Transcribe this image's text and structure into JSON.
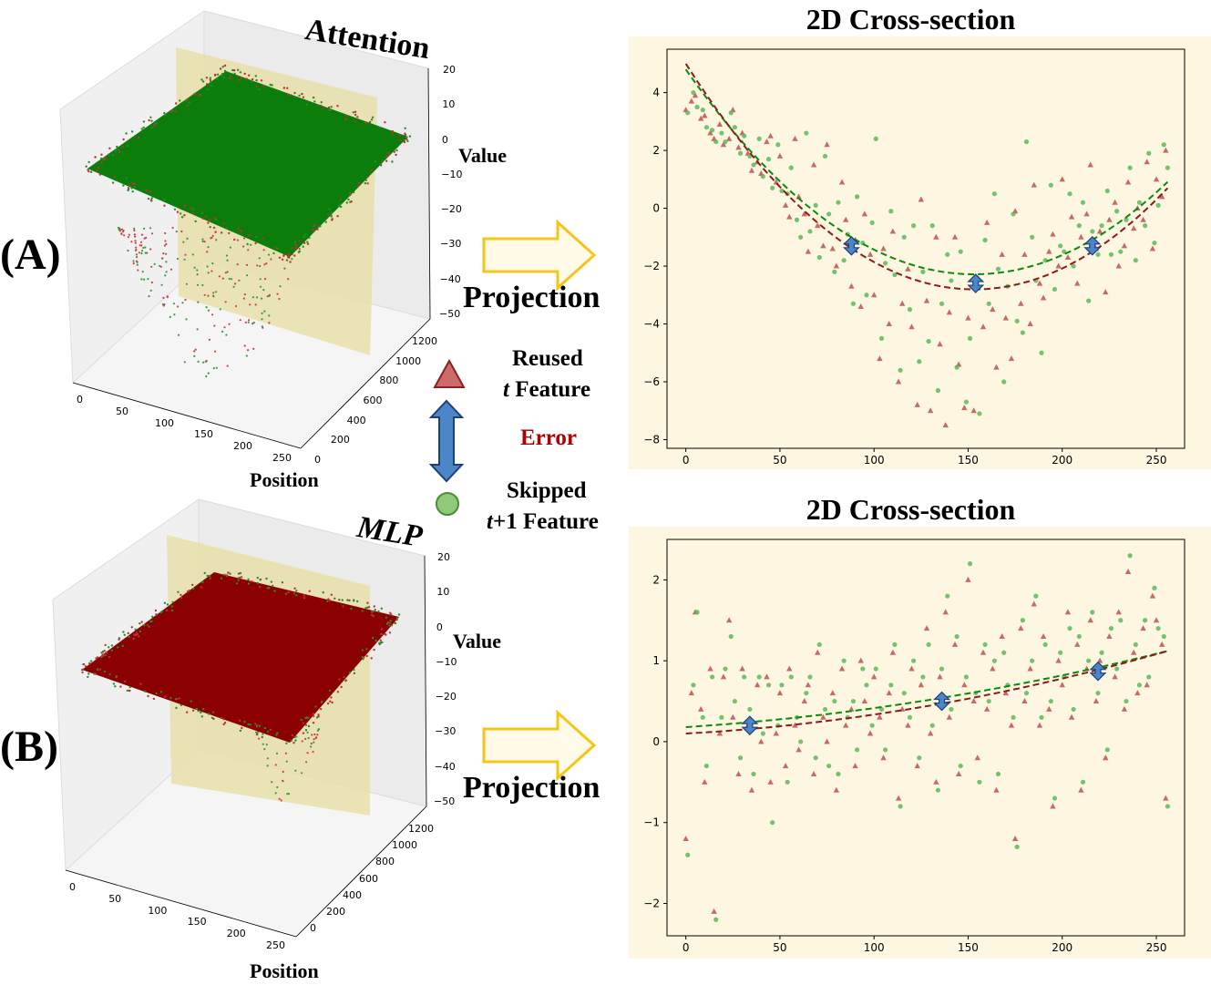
{
  "panels": [
    {
      "label": "(A)",
      "cube_title": "Attention",
      "cube_value_label": "Value",
      "cube_position_label": "Position",
      "cube_surface_color": "#0a7d0a",
      "cube_z_ticks": [
        "20",
        "10",
        "0",
        "−10",
        "−20",
        "−30",
        "−40",
        "−50"
      ],
      "cube_x_ticks": [
        "0",
        "50",
        "100",
        "150",
        "200",
        "250"
      ],
      "cube_y_ticks": [
        "0",
        "200",
        "400",
        "600",
        "800",
        "1000",
        "1200"
      ],
      "arrow_label": "Projection"
    },
    {
      "label": "(B)",
      "cube_title": "MLP",
      "cube_value_label": "Value",
      "cube_position_label": "Position",
      "cube_surface_color": "#8b0000",
      "cube_z_ticks": [
        "20",
        "10",
        "0",
        "−10",
        "−20",
        "−30",
        "−40",
        "−50"
      ],
      "cube_x_ticks": [
        "0",
        "50",
        "100",
        "150",
        "200",
        "250"
      ],
      "cube_y_ticks": [
        "0",
        "200",
        "400",
        "600",
        "800",
        "1000",
        "1200"
      ],
      "arrow_label": "Projection"
    }
  ],
  "legend": {
    "reused_line1": "Reused",
    "reused_line2_italic": "t",
    "reused_line2_rest": " Feature",
    "error": "Error",
    "skipped_line1": "Skipped",
    "skipped_line2_italic": "t",
    "skipped_line2_rest": "+1 Feature",
    "reused_color": "#cd6b6b",
    "skipped_color": "#8fc97a",
    "error_color": "#b00000",
    "arrow_color": "#4a86c8"
  },
  "colors": {
    "plot_bg": "#fdf6e0",
    "green_fit": "#0a8a0a",
    "red_fit": "#8b1a1a",
    "green_point": "#5cb85c",
    "red_point": "#c0504d",
    "projection_arrow_fill": "#fffbe8",
    "projection_arrow_stroke": "#f5c518"
  },
  "chart_data": [
    {
      "type": "scatter",
      "title": "2D Cross-section",
      "xlim": [
        -10,
        265
      ],
      "ylim": [
        -8.3,
        5.5
      ],
      "xticks": [
        0,
        50,
        100,
        150,
        200,
        250
      ],
      "yticks": [
        -8,
        -6,
        -4,
        -2,
        0,
        2,
        4
      ],
      "grid": false,
      "series": [
        {
          "kind": "fit",
          "color": "green",
          "coef": [
            4.8,
            -0.0925,
            0.000302
          ]
        },
        {
          "kind": "fit",
          "color": "red",
          "coef": [
            5.0,
            -0.1018,
            0.000332
          ]
        },
        {
          "kind": "error_markers",
          "x": [
            88,
            154,
            216
          ],
          "y": [
            -1.3,
            -2.6,
            -1.3
          ]
        },
        {
          "kind": "scatter",
          "color": "red",
          "marker": "triangle",
          "x": [
            0,
            3,
            5,
            8,
            10,
            13,
            15,
            18,
            20,
            23,
            25,
            28,
            30,
            33,
            35,
            38,
            40,
            43,
            45,
            48,
            50,
            53,
            55,
            58,
            60,
            63,
            65,
            68,
            70,
            73,
            75,
            78,
            80,
            83,
            85,
            88,
            90,
            93,
            95,
            98,
            100,
            103,
            105,
            108,
            110,
            113,
            115,
            118,
            120,
            123,
            125,
            128,
            130,
            133,
            135,
            138,
            140,
            143,
            145,
            148,
            150,
            153,
            155,
            158,
            160,
            163,
            165,
            168,
            170,
            173,
            175,
            178,
            180,
            183,
            185,
            188,
            190,
            193,
            195,
            198,
            200,
            203,
            205,
            208,
            210,
            213,
            215,
            218,
            220,
            223,
            225,
            228,
            230,
            233,
            235,
            238,
            240,
            243,
            245,
            248,
            250,
            253,
            255
          ],
          "y": [
            3.4,
            3.7,
            3.9,
            3.1,
            3.2,
            2.6,
            2.4,
            2.9,
            2.2,
            2.4,
            3.4,
            2.1,
            2.6,
            1.9,
            1.3,
            1.6,
            1.2,
            2.3,
            2.5,
            0.9,
            1.8,
            0.1,
            -0.3,
            2.4,
            0.4,
            -0.2,
            -1.5,
            1.5,
            -0.6,
            -1.3,
            2.2,
            -1.4,
            -2.0,
            0.9,
            -0.4,
            -2.7,
            -1.1,
            -3.4,
            -0.2,
            -1.6,
            -3.0,
            -5.2,
            -1.4,
            -4.0,
            -0.8,
            -6.0,
            -3.3,
            -2.1,
            -4.1,
            -6.8,
            0.3,
            -3.2,
            -7.0,
            -1.0,
            -4.7,
            -7.5,
            -3.6,
            -1.0,
            -5.4,
            -6.9,
            -3.8,
            -7.0,
            -2.7,
            -4.1,
            -0.5,
            -3.5,
            -5.5,
            -1.6,
            -3.8,
            -5.2,
            -0.1,
            -3.3,
            -1.6,
            -4.0,
            0.8,
            -2.6,
            -3.1,
            -1.5,
            -0.9,
            -2.0,
            1.0,
            -1.7,
            -0.3,
            -2.6,
            -1.0,
            -0.2,
            1.5,
            -1.4,
            -0.8,
            -2.9,
            -0.4,
            0.2,
            -2.0,
            -1.3,
            0.9,
            -0.7,
            0.0,
            -0.4,
            1.6,
            -1.4,
            1.0,
            0.4,
            2.0
          ]
        },
        {
          "kind": "scatter",
          "color": "green",
          "marker": "circle",
          "x": [
            1,
            4,
            6,
            9,
            11,
            14,
            16,
            19,
            21,
            24,
            26,
            29,
            31,
            34,
            36,
            39,
            41,
            44,
            46,
            49,
            51,
            54,
            56,
            59,
            61,
            64,
            66,
            69,
            71,
            74,
            76,
            79,
            81,
            84,
            86,
            89,
            91,
            94,
            96,
            99,
            101,
            104,
            106,
            109,
            111,
            114,
            116,
            119,
            121,
            124,
            126,
            129,
            131,
            134,
            136,
            139,
            141,
            144,
            146,
            149,
            151,
            154,
            156,
            159,
            161,
            164,
            166,
            169,
            171,
            174,
            176,
            179,
            181,
            184,
            186,
            189,
            191,
            194,
            196,
            199,
            201,
            204,
            206,
            209,
            211,
            214,
            216,
            219,
            221,
            224,
            226,
            229,
            231,
            234,
            236,
            239,
            241,
            244,
            246,
            249,
            251,
            254,
            256
          ],
          "y": [
            3.3,
            4.0,
            3.5,
            3.4,
            2.8,
            2.7,
            2.3,
            2.6,
            2.3,
            3.3,
            2.8,
            1.9,
            2.5,
            1.8,
            1.5,
            2.4,
            1.1,
            1.7,
            0.7,
            2.2,
            0.6,
            0.5,
            1.4,
            -0.4,
            -1.0,
            2.6,
            -0.8,
            0.1,
            -1.7,
            1.8,
            -0.2,
            -2.2,
            0.2,
            -1.8,
            -0.9,
            -3.3,
            0.4,
            -1.2,
            -3.0,
            -0.5,
            2.4,
            -4.5,
            -1.9,
            -0.1,
            -2.3,
            -5.6,
            -1.0,
            -3.5,
            -0.6,
            -5.3,
            -2.2,
            -4.6,
            -0.6,
            -6.3,
            -3.3,
            -1.6,
            -2.5,
            -5.5,
            -1.5,
            -6.7,
            -4.5,
            -2.8,
            -7.1,
            -1.1,
            -3.3,
            0.5,
            -2.1,
            -6.0,
            -2.7,
            -0.2,
            -3.9,
            -4.3,
            2.3,
            -1.0,
            -2.5,
            -5.0,
            -1.8,
            0.8,
            -2.8,
            -1.3,
            -1.5,
            0.5,
            -2.0,
            -0.6,
            0.2,
            -3.2,
            -0.8,
            -1.6,
            -0.6,
            0.6,
            -1.6,
            -0.1,
            -1.5,
            -0.4,
            1.4,
            -1.8,
            0.2,
            -0.6,
            1.9,
            -1.2,
            0.1,
            2.2,
            1.4
          ]
        }
      ]
    },
    {
      "type": "scatter",
      "title": "2D Cross-section",
      "xlim": [
        -10,
        265
      ],
      "ylim": [
        -2.4,
        2.5
      ],
      "xticks": [
        0,
        50,
        100,
        150,
        200,
        250
      ],
      "yticks": [
        -2,
        -1,
        0,
        1,
        2
      ],
      "grid": false,
      "series": [
        {
          "kind": "fit",
          "color": "green",
          "coef": [
            0.18,
            0.0015,
            8.5e-06
          ]
        },
        {
          "kind": "fit",
          "color": "red",
          "coef": [
            0.1,
            0.0013,
            1.05e-05
          ]
        },
        {
          "kind": "error_markers",
          "x": [
            34,
            136,
            219
          ],
          "y": [
            0.2,
            0.5,
            0.87
          ]
        },
        {
          "kind": "scatter",
          "color": "red",
          "marker": "triangle",
          "x": [
            0,
            3,
            5,
            8,
            10,
            13,
            15,
            18,
            20,
            23,
            25,
            28,
            30,
            33,
            35,
            38,
            40,
            43,
            45,
            48,
            50,
            53,
            55,
            58,
            60,
            63,
            65,
            68,
            70,
            73,
            75,
            78,
            80,
            83,
            85,
            88,
            90,
            93,
            95,
            98,
            100,
            103,
            105,
            108,
            110,
            113,
            115,
            118,
            120,
            123,
            125,
            128,
            130,
            133,
            135,
            138,
            140,
            143,
            145,
            148,
            150,
            153,
            155,
            158,
            160,
            163,
            165,
            168,
            170,
            173,
            175,
            178,
            180,
            183,
            185,
            188,
            190,
            193,
            195,
            198,
            200,
            203,
            205,
            208,
            210,
            213,
            215,
            218,
            220,
            223,
            225,
            228,
            230,
            233,
            235,
            238,
            240,
            243,
            245,
            248,
            250,
            253,
            255
          ],
          "y": [
            -1.2,
            0.6,
            1.6,
            0.4,
            -0.5,
            0.9,
            -2.1,
            0.1,
            0.8,
            1.5,
            0.3,
            -0.4,
            0.9,
            0.2,
            -0.6,
            0.7,
            0.0,
            0.8,
            -0.5,
            0.1,
            0.6,
            -0.3,
            0.9,
            0.2,
            -0.1,
            0.5,
            0.7,
            -0.4,
            1.1,
            0.3,
            0.0,
            0.6,
            -0.6,
            0.9,
            0.2,
            0.4,
            -0.3,
            1.0,
            0.5,
            0.1,
            0.8,
            0.3,
            -0.2,
            0.6,
            1.1,
            -0.7,
            0.4,
            0.2,
            0.9,
            -0.3,
            0.7,
            1.4,
            0.1,
            -0.5,
            0.8,
            1.6,
            0.3,
            1.2,
            -0.4,
            0.7,
            2.0,
            0.5,
            -0.2,
            1.1,
            0.4,
            0.9,
            -0.6,
            1.3,
            0.6,
            0.2,
            -1.2,
            1.4,
            0.5,
            0.9,
            1.7,
            0.2,
            1.3,
            0.4,
            -0.8,
            1.0,
            0.7,
            1.6,
            0.3,
            1.2,
            -0.6,
            0.9,
            1.5,
            0.5,
            1.0,
            -0.2,
            1.3,
            0.8,
            1.6,
            0.4,
            2.1,
            1.1,
            0.6,
            1.4,
            0.7,
            1.8,
            1.5,
            1.2,
            -0.7
          ]
        },
        {
          "kind": "scatter",
          "color": "green",
          "marker": "circle",
          "x": [
            1,
            4,
            6,
            9,
            11,
            14,
            16,
            19,
            21,
            24,
            26,
            29,
            31,
            34,
            36,
            39,
            41,
            44,
            46,
            49,
            51,
            54,
            56,
            59,
            61,
            64,
            66,
            69,
            71,
            74,
            76,
            79,
            81,
            84,
            86,
            89,
            91,
            94,
            96,
            99,
            101,
            104,
            106,
            109,
            111,
            114,
            116,
            119,
            121,
            124,
            126,
            129,
            131,
            134,
            136,
            139,
            141,
            144,
            146,
            149,
            151,
            154,
            156,
            159,
            161,
            164,
            166,
            169,
            171,
            174,
            176,
            179,
            181,
            184,
            186,
            189,
            191,
            194,
            196,
            199,
            201,
            204,
            206,
            209,
            211,
            214,
            216,
            219,
            221,
            224,
            226,
            229,
            231,
            234,
            236,
            239,
            241,
            244,
            246,
            249,
            251,
            254,
            256
          ],
          "y": [
            -1.4,
            0.7,
            1.6,
            0.3,
            -0.3,
            0.8,
            -2.2,
            0.3,
            0.9,
            1.3,
            0.5,
            -0.2,
            0.8,
            0.4,
            -0.4,
            0.8,
            0.1,
            0.7,
            -1.0,
            0.2,
            0.7,
            -0.5,
            0.8,
            0.3,
            0.0,
            0.6,
            0.8,
            -0.2,
            1.2,
            0.4,
            -0.3,
            0.5,
            -0.4,
            1.0,
            0.3,
            0.5,
            -0.1,
            0.9,
            0.7,
            0.2,
            0.9,
            0.4,
            -0.1,
            0.7,
            1.2,
            -0.8,
            0.6,
            0.3,
            1.0,
            -0.2,
            0.8,
            1.2,
            0.2,
            -0.6,
            0.9,
            1.8,
            0.4,
            1.3,
            -0.3,
            0.8,
            2.2,
            0.6,
            -0.5,
            1.2,
            0.5,
            1.0,
            -0.4,
            1.1,
            0.7,
            0.3,
            -1.3,
            1.5,
            0.6,
            1.0,
            1.8,
            0.3,
            1.2,
            0.5,
            -0.7,
            1.1,
            0.8,
            1.4,
            0.4,
            1.3,
            -0.5,
            1.0,
            1.6,
            0.6,
            1.1,
            -0.1,
            1.4,
            0.9,
            1.5,
            0.5,
            2.3,
            1.2,
            0.7,
            1.5,
            0.8,
            1.9,
            1.4,
            1.3,
            -0.8
          ]
        }
      ]
    }
  ]
}
